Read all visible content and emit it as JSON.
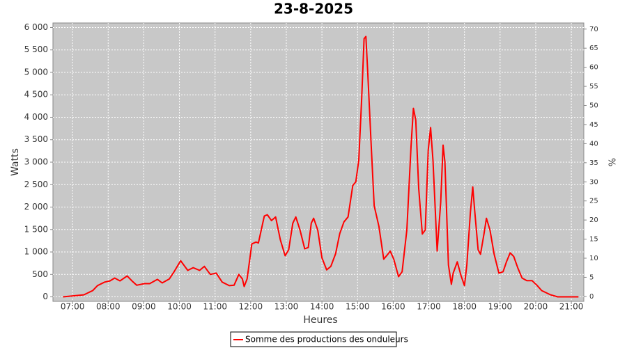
{
  "chart_data": {
    "type": "line",
    "title": "23-8-2025",
    "x_label": "Heures",
    "y_label": "Watts",
    "y2_label": "%",
    "x": [
      "06:44",
      "07:19",
      "07:34",
      "07:42",
      "07:54",
      "08:03",
      "08:11",
      "08:20",
      "08:32",
      "08:40",
      "08:48",
      "09:01",
      "09:10",
      "09:23",
      "09:31",
      "09:43",
      "09:51",
      "10:02",
      "10:14",
      "10:23",
      "10:34",
      "10:42",
      "10:52",
      "11:02",
      "11:12",
      "11:24",
      "11:32",
      "11:40",
      "11:46",
      "11:49",
      "11:54",
      "12:02",
      "12:09",
      "12:13",
      "12:23",
      "12:28",
      "12:35",
      "12:42",
      "12:50",
      "12:58",
      "13:04",
      "13:11",
      "13:16",
      "13:23",
      "13:31",
      "13:37",
      "13:42",
      "13:46",
      "13:53",
      "14:00",
      "14:08",
      "14:15",
      "14:23",
      "14:30",
      "14:37",
      "14:44",
      "14:52",
      "14:57",
      "15:02",
      "15:07",
      "15:11",
      "15:14",
      "15:17",
      "15:23",
      "15:28",
      "15:36",
      "15:44",
      "15:51",
      "15:55",
      "16:01",
      "16:09",
      "16:15",
      "16:23",
      "16:30",
      "16:34",
      "16:38",
      "16:43",
      "16:49",
      "16:54",
      "16:59",
      "17:03",
      "17:07",
      "17:14",
      "17:20",
      "17:24",
      "17:27",
      "17:33",
      "17:38",
      "17:41",
      "17:48",
      "17:54",
      "18:00",
      "18:04",
      "18:10",
      "18:14",
      "18:17",
      "18:23",
      "18:27",
      "18:33",
      "18:37",
      "18:43",
      "18:50",
      "18:58",
      "19:05",
      "19:11",
      "19:17",
      "19:23",
      "19:30",
      "19:37",
      "19:45",
      "19:54",
      "20:02",
      "20:10",
      "20:25",
      "20:37",
      "21:12"
    ],
    "series": [
      {
        "name": "Somme des productions des onduleurs",
        "color": "#ff0000",
        "values": [
          0,
          45,
          140,
          250,
          330,
          355,
          420,
          355,
          465,
          355,
          260,
          295,
          295,
          390,
          310,
          400,
          560,
          805,
          590,
          650,
          590,
          680,
          500,
          530,
          330,
          250,
          260,
          500,
          400,
          230,
          400,
          1180,
          1220,
          1200,
          1800,
          1830,
          1700,
          1780,
          1270,
          915,
          1050,
          1640,
          1780,
          1490,
          1070,
          1100,
          1640,
          1750,
          1490,
          870,
          600,
          680,
          960,
          1410,
          1670,
          1780,
          2480,
          2560,
          3040,
          4430,
          5750,
          5800,
          5050,
          3350,
          2030,
          1570,
          840,
          950,
          1020,
          840,
          450,
          560,
          1490,
          3350,
          4200,
          3940,
          2420,
          1400,
          1490,
          3270,
          3770,
          3040,
          1020,
          2110,
          3380,
          3010,
          710,
          280,
          530,
          780,
          480,
          250,
          710,
          1880,
          2450,
          1950,
          1050,
          950,
          1410,
          1750,
          1490,
          950,
          530,
          560,
          790,
          980,
          900,
          640,
          420,
          360,
          360,
          260,
          140,
          45,
          0,
          0
        ]
      }
    ],
    "xlim": [
      "06:27",
      "21:21"
    ],
    "xticks": [
      "07:00",
      "08:00",
      "09:00",
      "10:00",
      "11:00",
      "12:00",
      "13:00",
      "14:00",
      "15:00",
      "16:00",
      "17:00",
      "18:00",
      "19:00",
      "20:00",
      "21:00"
    ],
    "ylim": [
      -100,
      6100
    ],
    "yticks": [
      0,
      {
        "value": 500,
        "label": "500"
      },
      {
        "value": 1000,
        "label": "1 000"
      },
      {
        "value": 1500,
        "label": "1 500"
      },
      {
        "value": 2000,
        "label": "2 000"
      },
      {
        "value": 2500,
        "label": "2 500"
      },
      {
        "value": 3000,
        "label": "3 000"
      },
      {
        "value": 3500,
        "label": "3 500"
      },
      {
        "value": 4000,
        "label": "4 000"
      },
      {
        "value": 4500,
        "label": "4 500"
      },
      {
        "value": 5000,
        "label": "5 000"
      },
      {
        "value": 5500,
        "label": "5 500"
      },
      {
        "value": 6000,
        "label": "6 000"
      }
    ],
    "y2lim": [
      -1.3,
      71.6
    ],
    "y2ticks": [
      0,
      5,
      10,
      15,
      20,
      25,
      30,
      35,
      40,
      45,
      50,
      55,
      60,
      65,
      70
    ],
    "grid": true,
    "legend": "bottom"
  }
}
